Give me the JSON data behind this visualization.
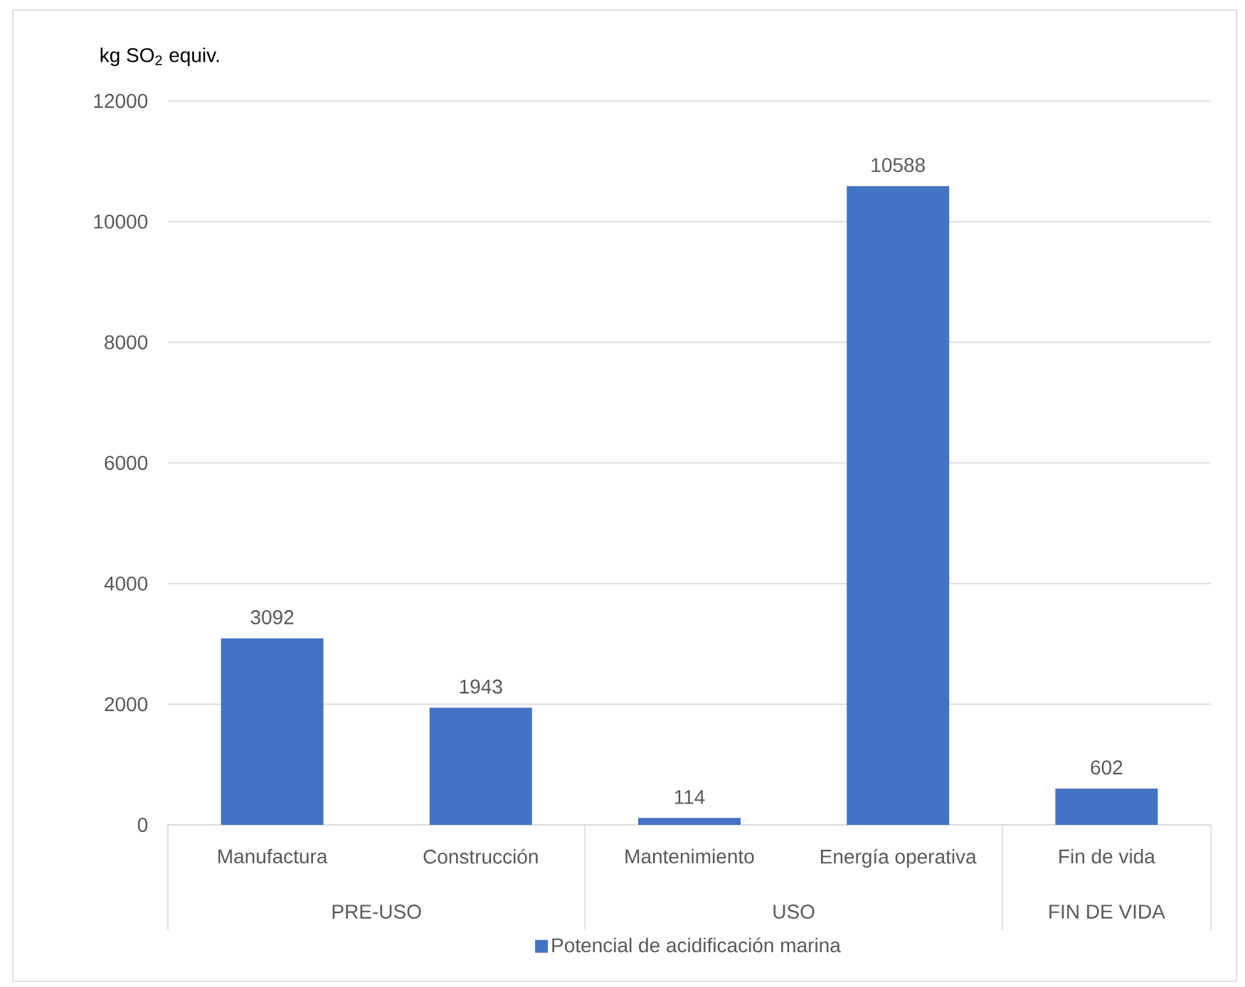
{
  "chart_data": {
    "type": "bar",
    "ylabel": "kg SO$_{2}$ equiv.",
    "categories": [
      "Manufactura",
      "Construcción",
      "Mantenimiento",
      "Energía operativa",
      "Fin de vida"
    ],
    "series": [
      {
        "name": "Potencial de acidificación marina",
        "color": "#4472c4",
        "values": [
          3092,
          1943,
          114,
          10588,
          602
        ]
      }
    ],
    "ylim": [
      0,
      12000
    ],
    "yticks": [
      0,
      2000,
      4000,
      6000,
      8000,
      10000,
      12000
    ],
    "grid": "y",
    "data_labels": true,
    "legend": "bottom",
    "annotations": [
      "PRE-USO",
      "USO",
      "FIN DE VIDA"
    ]
  }
}
